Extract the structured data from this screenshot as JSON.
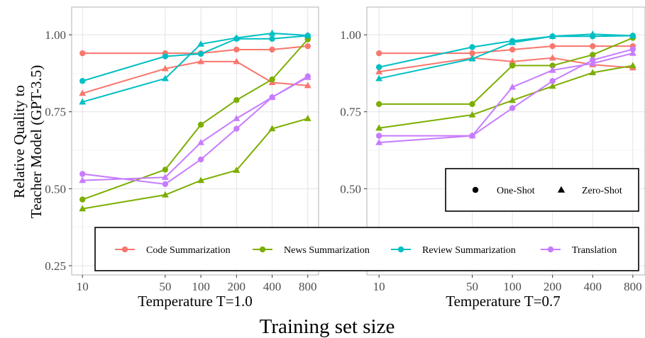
{
  "chart_data": [
    {
      "type": "line",
      "title": "Temperature T=1.0",
      "xscale": "log",
      "x": [
        10,
        50,
        100,
        200,
        400,
        800
      ],
      "ylim": [
        0.22,
        1.09
      ],
      "yticks": [
        0.25,
        0.5,
        0.75,
        1.0
      ],
      "ytick_labels": [
        "0.25",
        "0.50",
        "0.75",
        "1.00"
      ],
      "xtick_labels": [
        "10",
        "50",
        "100",
        "200",
        "400",
        "800"
      ],
      "series": [
        {
          "name": "Code Summarization",
          "shot": "One-Shot",
          "color": "#F8766D",
          "values": [
            0.94,
            0.94,
            0.94,
            0.952,
            0.952,
            0.963
          ]
        },
        {
          "name": "Code Summarization",
          "shot": "Zero-Shot",
          "color": "#F8766D",
          "values": [
            0.81,
            0.89,
            0.913,
            0.913,
            0.845,
            0.835
          ]
        },
        {
          "name": "News Summarization",
          "shot": "One-Shot",
          "color": "#7CAE00",
          "values": [
            0.465,
            0.562,
            0.708,
            0.788,
            0.855,
            0.985
          ]
        },
        {
          "name": "News Summarization",
          "shot": "Zero-Shot",
          "color": "#7CAE00",
          "values": [
            0.435,
            0.48,
            0.527,
            0.56,
            0.695,
            0.728
          ]
        },
        {
          "name": "Review Summarization",
          "shot": "One-Shot",
          "color": "#00BFC4",
          "values": [
            0.85,
            0.93,
            0.938,
            0.987,
            0.987,
            0.997
          ]
        },
        {
          "name": "Review Summarization",
          "shot": "Zero-Shot",
          "color": "#00BFC4",
          "values": [
            0.782,
            0.858,
            0.97,
            0.99,
            1.005,
            0.998
          ]
        },
        {
          "name": "Translation",
          "shot": "One-Shot",
          "color": "#C77CFF",
          "values": [
            0.548,
            0.515,
            0.595,
            0.695,
            0.797,
            0.865
          ]
        },
        {
          "name": "Translation",
          "shot": "Zero-Shot",
          "color": "#C77CFF",
          "values": [
            0.527,
            0.537,
            0.65,
            0.728,
            0.797,
            0.862
          ]
        }
      ]
    },
    {
      "type": "line",
      "title": "Temperature T=0.7",
      "xscale": "log",
      "x": [
        10,
        50,
        100,
        200,
        400,
        800
      ],
      "ylim": [
        0.22,
        1.09
      ],
      "yticks": [
        0.25,
        0.5,
        0.75,
        1.0
      ],
      "ytick_labels": [
        "0.25",
        "0.50",
        "0.75",
        "1.00"
      ],
      "xtick_labels": [
        "10",
        "50",
        "100",
        "200",
        "400",
        "800"
      ],
      "series": [
        {
          "name": "Code Summarization",
          "shot": "One-Shot",
          "color": "#F8766D",
          "values": [
            0.94,
            0.94,
            0.952,
            0.963,
            0.963,
            0.963
          ]
        },
        {
          "name": "Code Summarization",
          "shot": "Zero-Shot",
          "color": "#F8766D",
          "values": [
            0.88,
            0.925,
            0.913,
            0.925,
            0.903,
            0.893
          ]
        },
        {
          "name": "News Summarization",
          "shot": "One-Shot",
          "color": "#7CAE00",
          "values": [
            0.775,
            0.775,
            0.9,
            0.9,
            0.935,
            0.99
          ]
        },
        {
          "name": "News Summarization",
          "shot": "Zero-Shot",
          "color": "#7CAE00",
          "values": [
            0.697,
            0.74,
            0.787,
            0.833,
            0.877,
            0.9
          ]
        },
        {
          "name": "Review Summarization",
          "shot": "One-Shot",
          "color": "#00BFC4",
          "values": [
            0.895,
            0.96,
            0.98,
            0.995,
            0.995,
            0.997
          ]
        },
        {
          "name": "Review Summarization",
          "shot": "Zero-Shot",
          "color": "#00BFC4",
          "values": [
            0.858,
            0.922,
            0.975,
            0.995,
            1.002,
            0.997
          ]
        },
        {
          "name": "Translation",
          "shot": "One-Shot",
          "color": "#C77CFF",
          "values": [
            0.672,
            0.672,
            0.762,
            0.85,
            0.918,
            0.953
          ]
        },
        {
          "name": "Translation",
          "shot": "Zero-Shot",
          "color": "#C77CFF",
          "values": [
            0.65,
            0.672,
            0.83,
            0.885,
            0.907,
            0.94
          ]
        }
      ]
    }
  ],
  "ylabel_line1": "Relative Quality to",
  "ylabel_line2": "Teacher Model (GPT-3.5)",
  "xlabel": "Training set size",
  "shape_legend": {
    "position": "right-panel-middle",
    "items": [
      {
        "label": "One-Shot",
        "shape": "circle"
      },
      {
        "label": "Zero-Shot",
        "shape": "triangle"
      }
    ]
  },
  "color_legend": {
    "position": "bottom",
    "items": [
      {
        "label": "Code Summarization",
        "color": "#F8766D"
      },
      {
        "label": "News Summarization",
        "color": "#7CAE00"
      },
      {
        "label": "Review Summarization",
        "color": "#00BFC4"
      },
      {
        "label": "Translation",
        "color": "#C77CFF"
      }
    ]
  }
}
